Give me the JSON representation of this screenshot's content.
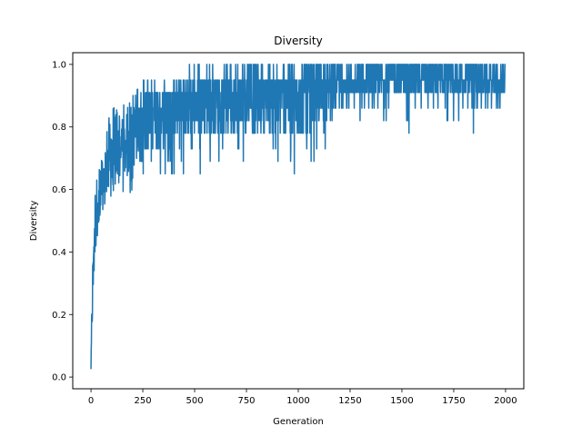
{
  "chart_data": {
    "type": "line",
    "title": "Diversity",
    "xlabel": "Generation",
    "ylabel": "Diversity",
    "xlim": [
      -88,
      2088
    ],
    "ylim": [
      -0.0375,
      1.0375
    ],
    "xticks": [
      0,
      250,
      500,
      750,
      1000,
      1250,
      1500,
      1750,
      2000
    ],
    "xtick_labels": [
      "0",
      "250",
      "500",
      "750",
      "1000",
      "1250",
      "1500",
      "1750",
      "2000"
    ],
    "yticks": [
      0.0,
      0.2,
      0.4,
      0.6,
      0.8,
      1.0
    ],
    "ytick_labels": [
      "0.0",
      "0.2",
      "0.4",
      "0.6",
      "0.8",
      "1.0"
    ],
    "grid": false,
    "legend": "none",
    "series": [
      {
        "color": "#1f77b4",
        "x": [
          0,
          5,
          10,
          15,
          20,
          25,
          30,
          40,
          50,
          60,
          75,
          90,
          100,
          125,
          150,
          175,
          200,
          225,
          250,
          300,
          350,
          400,
          450,
          500,
          550,
          600,
          650,
          700,
          750,
          800,
          850,
          900,
          950,
          1000,
          1050,
          1100,
          1150,
          1200,
          1250,
          1300,
          1350,
          1400,
          1450,
          1500,
          1550,
          1600,
          1650,
          1700,
          1750,
          1800,
          1850,
          1900,
          1950,
          2000
        ],
        "mean": [
          0.03,
          0.2,
          0.3,
          0.38,
          0.45,
          0.48,
          0.5,
          0.53,
          0.56,
          0.59,
          0.62,
          0.65,
          0.67,
          0.7,
          0.72,
          0.74,
          0.76,
          0.78,
          0.8,
          0.82,
          0.83,
          0.84,
          0.85,
          0.85,
          0.86,
          0.86,
          0.87,
          0.87,
          0.87,
          0.88,
          0.88,
          0.88,
          0.88,
          0.88,
          0.89,
          0.9,
          0.91,
          0.92,
          0.93,
          0.93,
          0.94,
          0.94,
          0.94,
          0.94,
          0.94,
          0.94,
          0.94,
          0.94,
          0.94,
          0.94,
          0.94,
          0.94,
          0.94,
          0.94
        ],
        "low": [
          0.01,
          0.08,
          0.18,
          0.3,
          0.38,
          0.42,
          0.45,
          0.47,
          0.5,
          0.52,
          0.55,
          0.55,
          0.57,
          0.58,
          0.58,
          0.52,
          0.6,
          0.6,
          0.62,
          0.62,
          0.62,
          0.64,
          0.65,
          0.6,
          0.66,
          0.68,
          0.68,
          0.65,
          0.68,
          0.65,
          0.68,
          0.68,
          0.65,
          0.6,
          0.69,
          0.69,
          0.72,
          0.78,
          0.82,
          0.82,
          0.82,
          0.82,
          0.82,
          0.82,
          0.78,
          0.82,
          0.82,
          0.78,
          0.82,
          0.82,
          0.78,
          0.82,
          0.86,
          0.86
        ],
        "high": [
          0.05,
          0.3,
          0.44,
          0.5,
          0.6,
          0.62,
          0.65,
          0.67,
          0.7,
          0.72,
          0.8,
          0.84,
          0.87,
          0.87,
          0.87,
          0.88,
          0.9,
          0.95,
          0.95,
          0.95,
          0.95,
          0.96,
          0.96,
          1.0,
          1.0,
          1.0,
          1.0,
          1.0,
          1.0,
          1.0,
          1.0,
          1.0,
          1.0,
          1.0,
          1.0,
          1.0,
          1.0,
          1.0,
          1.0,
          1.0,
          1.0,
          1.0,
          1.0,
          1.0,
          1.0,
          1.0,
          1.0,
          1.0,
          1.0,
          1.0,
          1.0,
          1.0,
          1.0,
          1.0
        ]
      }
    ]
  }
}
